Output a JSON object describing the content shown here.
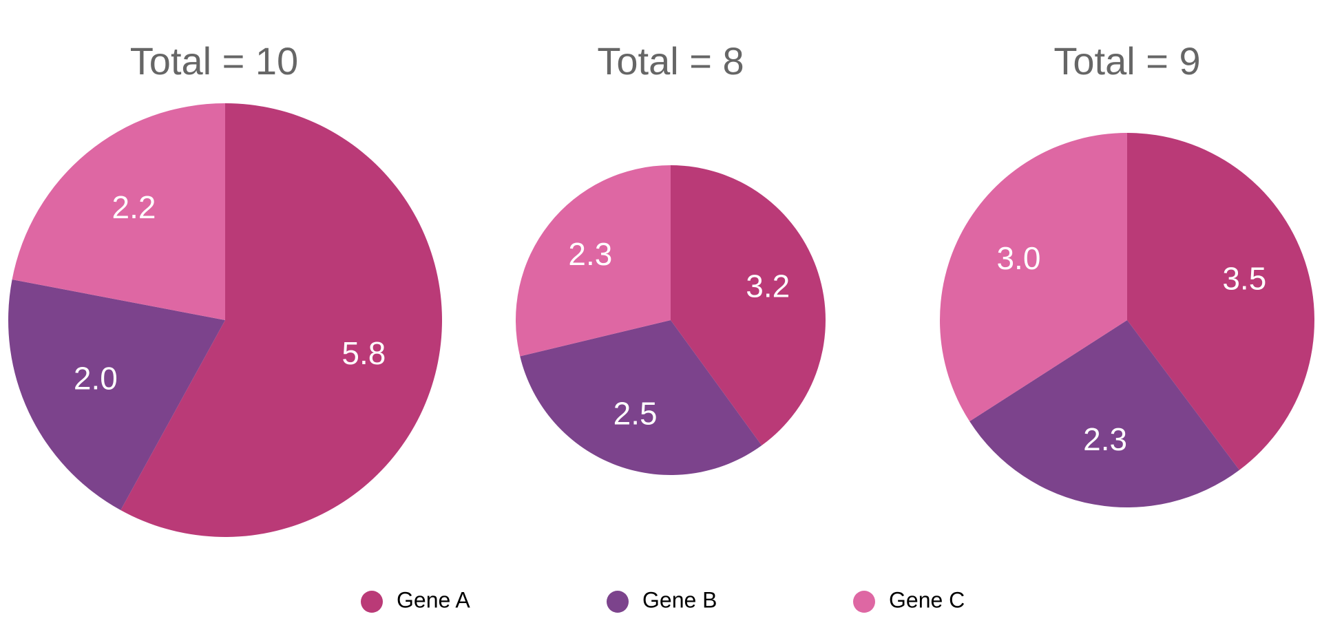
{
  "chart_data": [
    {
      "type": "pie",
      "title": "Total = 10",
      "total": 10,
      "labels": [
        "Gene A",
        "Gene B",
        "Gene C"
      ],
      "values": [
        5.8,
        2.0,
        2.2
      ],
      "value_labels": [
        "5.8",
        "2.0",
        "2.2"
      ]
    },
    {
      "type": "pie",
      "title": "Total = 8",
      "total": 8,
      "labels": [
        "Gene A",
        "Gene B",
        "Gene C"
      ],
      "values": [
        3.2,
        2.5,
        2.3
      ],
      "value_labels": [
        "3.2",
        "2.5",
        "2.3"
      ]
    },
    {
      "type": "pie",
      "title": "Total = 9",
      "total": 9,
      "labels": [
        "Gene A",
        "Gene B",
        "Gene C"
      ],
      "values": [
        3.5,
        2.3,
        3.0
      ],
      "value_labels": [
        "3.5",
        "2.3",
        "3.0"
      ]
    }
  ],
  "legend": {
    "placement": "bottom",
    "items": [
      {
        "label": "Gene A",
        "color": "#BA3A77"
      },
      {
        "label": "Gene B",
        "color": "#7C438C"
      },
      {
        "label": "Gene C",
        "color": "#DE67A3"
      }
    ]
  }
}
